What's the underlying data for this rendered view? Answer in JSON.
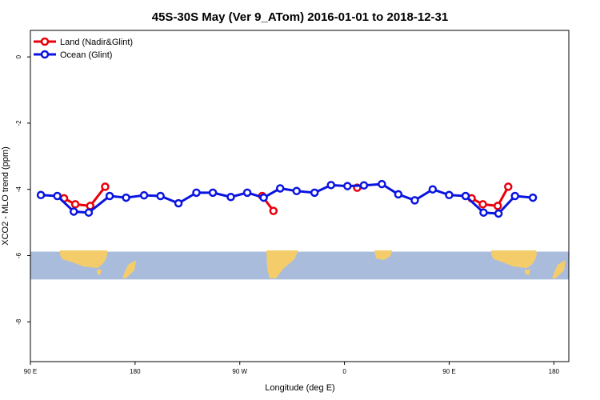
{
  "chart_data": {
    "type": "line",
    "title": "45S-30S May (Ver 9_ATom)   2016-01-01 to 2018-12-31",
    "xlabel": "Longitude (deg E)",
    "ylabel": "XCO2 - MLO trend (ppm)",
    "xlim": [
      90,
      450
    ],
    "ylim": [
      -9.2,
      0.8
    ],
    "x_ticks": [
      {
        "value": 90,
        "label": "90 E"
      },
      {
        "value": 160,
        "label": "180"
      },
      {
        "value": 230,
        "label": "90 W"
      },
      {
        "value": 300,
        "label": "0"
      },
      {
        "value": 370,
        "label": "90 E"
      },
      {
        "value": 440,
        "label": "180"
      }
    ],
    "y_ticks": [
      {
        "value": 0,
        "label": "0"
      },
      {
        "value": -2,
        "label": "-2"
      },
      {
        "value": -4,
        "label": "-4"
      },
      {
        "value": -6,
        "label": "-6"
      },
      {
        "value": -8,
        "label": "-8"
      }
    ],
    "legend_position": "top-left",
    "grid": false,
    "map_band": {
      "y_range": [
        -6.72,
        -5.88
      ],
      "ocean_color": "#a9bcdc",
      "land_color": "#f4cd6a"
    },
    "series": [
      {
        "name": "Land (Nadir&Glint)",
        "color": "#e8000b",
        "segments": [
          [
            [
              112.5,
              -4.27
            ],
            [
              120,
              -4.45
            ],
            [
              130,
              -4.5
            ],
            [
              140,
              -3.92
            ]
          ],
          [
            [
              245,
              -4.2
            ],
            [
              252.5,
              -4.65
            ]
          ],
          [
            [
              308.5,
              -3.95
            ]
          ],
          [
            [
              385,
              -4.27
            ],
            [
              392.5,
              -4.45
            ],
            [
              402.5,
              -4.5
            ],
            [
              409.5,
              -3.92
            ]
          ]
        ]
      },
      {
        "name": "Ocean (Glint)",
        "color": "#0a14e0",
        "segments": [
          [
            [
              97,
              -4.17
            ],
            [
              108,
              -4.2
            ],
            [
              119,
              -4.67
            ],
            [
              129,
              -4.7
            ],
            [
              143,
              -4.2
            ],
            [
              154,
              -4.25
            ],
            [
              166,
              -4.18
            ],
            [
              177,
              -4.2
            ],
            [
              189,
              -4.42
            ],
            [
              201,
              -4.1
            ],
            [
              212,
              -4.1
            ],
            [
              224,
              -4.23
            ],
            [
              235,
              -4.1
            ],
            [
              246,
              -4.25
            ],
            [
              257,
              -3.97
            ],
            [
              268,
              -4.05
            ],
            [
              280,
              -4.1
            ],
            [
              291,
              -3.87
            ],
            [
              302,
              -3.9
            ],
            [
              313,
              -3.88
            ],
            [
              325,
              -3.84
            ],
            [
              336,
              -4.15
            ],
            [
              347,
              -4.33
            ],
            [
              359,
              -4.0
            ],
            [
              370,
              -4.17
            ],
            [
              381,
              -4.2
            ],
            [
              393,
              -4.7
            ],
            [
              403,
              -4.73
            ],
            [
              414,
              -4.2
            ],
            [
              426,
              -4.25
            ]
          ]
        ]
      }
    ]
  }
}
